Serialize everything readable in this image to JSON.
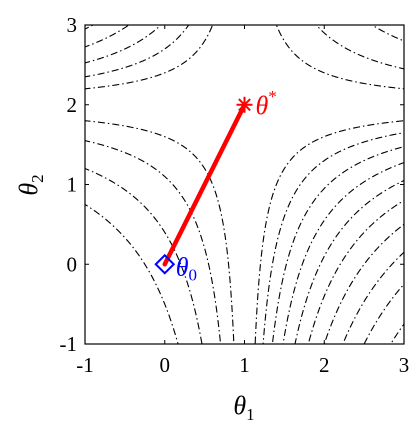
{
  "chart_data": {
    "type": "contour",
    "xlabel": "θ",
    "xlabel_sub": "1",
    "ylabel": "θ",
    "ylabel_sub": "2",
    "xlim": [
      -1,
      3
    ],
    "ylim": [
      -1,
      3
    ],
    "xticks": [
      -1,
      0,
      1,
      2,
      3
    ],
    "yticks": [
      -1,
      0,
      1,
      2,
      3
    ],
    "xtick_labels": [
      "-1",
      "0",
      "1",
      "2",
      "3"
    ],
    "ytick_labels": [
      "-1",
      "0",
      "1",
      "2",
      "3"
    ],
    "contour_function": "(θ1-1)(θ2-2)",
    "contour_levels": [
      -5.5,
      -4.5,
      -3.7,
      -3,
      -2.4,
      -1.9,
      -1.45,
      -1.05,
      -0.7,
      -0.4,
      0.4,
      0.9,
      1.6,
      2.5
    ],
    "contour_style": "dash-dot black",
    "path": {
      "x": [
        0,
        1
      ],
      "y": [
        0,
        2
      ],
      "color": "#ff0000"
    },
    "start_point": {
      "x": 0,
      "y": 0,
      "marker": "diamond",
      "color": "#0000ff",
      "label": "θ",
      "label_sub": "0"
    },
    "end_point": {
      "x": 1,
      "y": 2,
      "marker": "asterisk",
      "color": "#ff0000",
      "label": "θ",
      "label_sup": "*"
    }
  }
}
